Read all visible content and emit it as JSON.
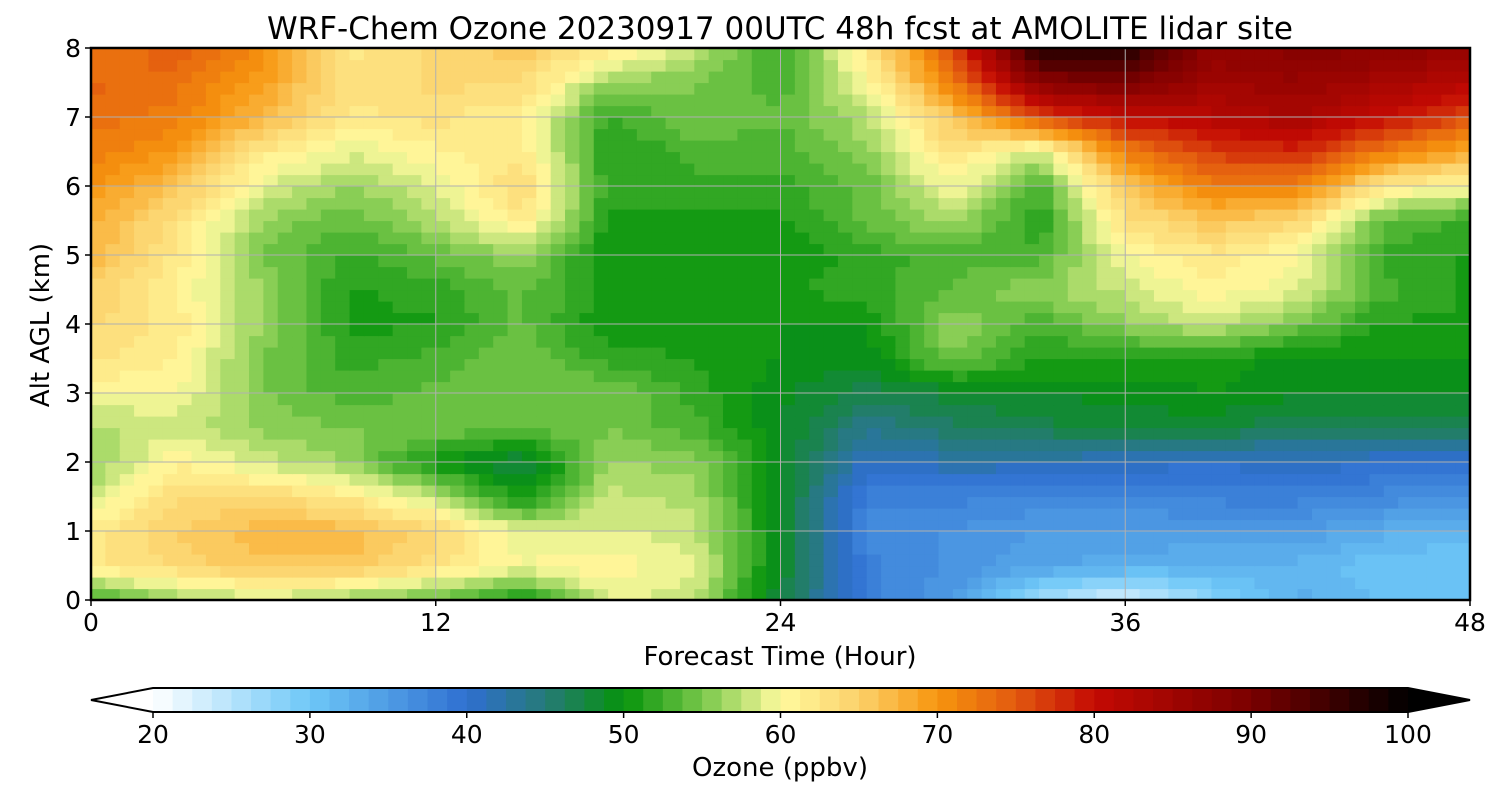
{
  "chart_data": {
    "type": "heatmap",
    "subtype": "filled-contour",
    "title": "WRF-Chem Ozone  20230917 00UTC 48h fcst at AMOLITE lidar site",
    "xlabel": "Forecast Time (Hour)",
    "ylabel": "Alt AGL (km)",
    "xlim": [
      0,
      48
    ],
    "ylim": [
      0,
      8
    ],
    "xticks": [
      "0",
      "12",
      "24",
      "36",
      "48"
    ],
    "yticks": [
      "0",
      "1",
      "2",
      "3",
      "4",
      "5",
      "6",
      "7",
      "8"
    ],
    "grid": true,
    "x": [
      0,
      3,
      6,
      9,
      12,
      15,
      18,
      21,
      24,
      27,
      30,
      33,
      36,
      39,
      42,
      45,
      48
    ],
    "y": [
      0,
      0.5,
      1,
      1.5,
      2,
      2.5,
      3,
      3.5,
      4,
      4.5,
      5,
      5.5,
      6,
      6.5,
      7,
      7.5,
      8
    ],
    "z": [
      [
        52,
        56,
        58,
        56,
        54,
        50,
        59,
        58,
        47,
        38,
        35,
        26,
        22,
        28,
        33,
        31,
        30
      ],
      [
        62,
        64,
        66,
        66,
        63,
        60,
        61,
        59,
        49,
        38,
        36,
        34,
        33,
        32,
        32,
        30,
        30
      ],
      [
        62,
        65,
        67,
        67,
        64,
        59,
        59,
        58,
        49,
        37,
        36,
        35,
        35,
        35,
        35,
        33,
        32
      ],
      [
        58,
        64,
        64,
        62,
        58,
        50,
        58,
        57,
        49,
        38,
        38,
        37,
        37,
        38,
        38,
        37,
        36
      ],
      [
        56,
        61,
        58,
        56,
        50,
        47,
        56,
        56,
        49,
        41,
        42,
        42,
        41,
        40,
        41,
        40,
        40
      ],
      [
        57,
        58,
        56,
        55,
        55,
        54,
        55,
        53,
        49,
        44,
        46,
        47,
        48,
        48,
        46,
        47,
        47
      ],
      [
        60,
        60,
        55,
        53,
        54,
        55,
        55,
        52,
        49,
        47,
        48,
        49,
        49,
        50,
        49,
        49,
        49
      ],
      [
        63,
        61,
        55,
        52,
        53,
        55,
        52,
        51,
        50,
        49,
        55,
        51,
        51,
        51,
        49,
        50,
        50
      ],
      [
        64,
        62,
        56,
        51,
        51,
        54,
        50,
        51,
        50,
        50,
        56,
        53,
        56,
        58,
        55,
        51,
        51
      ],
      [
        65,
        61,
        56,
        51,
        52,
        54,
        51,
        51,
        51,
        52,
        54,
        56,
        58,
        61,
        59,
        53,
        51
      ],
      [
        67,
        62,
        55,
        52,
        54,
        56,
        50,
        50,
        50,
        52,
        53,
        53,
        60,
        62,
        60,
        52,
        51
      ],
      [
        68,
        63,
        56,
        54,
        57,
        62,
        51,
        51,
        51,
        54,
        57,
        51,
        63,
        66,
        64,
        54,
        52
      ],
      [
        70,
        66,
        59,
        56,
        59,
        64,
        52,
        52,
        52,
        54,
        60,
        53,
        66,
        72,
        72,
        62,
        60
      ],
      [
        72,
        70,
        62,
        59,
        61,
        62,
        51,
        53,
        53,
        56,
        63,
        58,
        72,
        77,
        78,
        72,
        68
      ],
      [
        73,
        72,
        67,
        62,
        63,
        61,
        52,
        55,
        54,
        57,
        66,
        76,
        80,
        82,
        84,
        80,
        76
      ],
      [
        74,
        73,
        69,
        63,
        64,
        64,
        56,
        55,
        53,
        60,
        72,
        88,
        90,
        85,
        86,
        84,
        82
      ],
      [
        72,
        75,
        71,
        62,
        64,
        66,
        62,
        58,
        52,
        62,
        76,
        97,
        97,
        87,
        88,
        88,
        86
      ]
    ],
    "colorbar": {
      "label": "Ozone  (ppbv)",
      "min": 20,
      "max": 100,
      "extend": "both",
      "ticks": [
        "20",
        "30",
        "40",
        "50",
        "60",
        "70",
        "80",
        "90",
        "100"
      ],
      "stops": [
        [
          20,
          "#ffffff"
        ],
        [
          30,
          "#6ec8f7"
        ],
        [
          40,
          "#2f6fd1"
        ],
        [
          45,
          "#267a78"
        ],
        [
          50,
          "#06930b"
        ],
        [
          55,
          "#78c84a"
        ],
        [
          60,
          "#fffa9e"
        ],
        [
          65,
          "#fbd16a"
        ],
        [
          70,
          "#f7960e"
        ],
        [
          75,
          "#e2590f"
        ],
        [
          80,
          "#c40a03"
        ],
        [
          90,
          "#7a0000"
        ],
        [
          100,
          "#000000"
        ]
      ]
    }
  }
}
